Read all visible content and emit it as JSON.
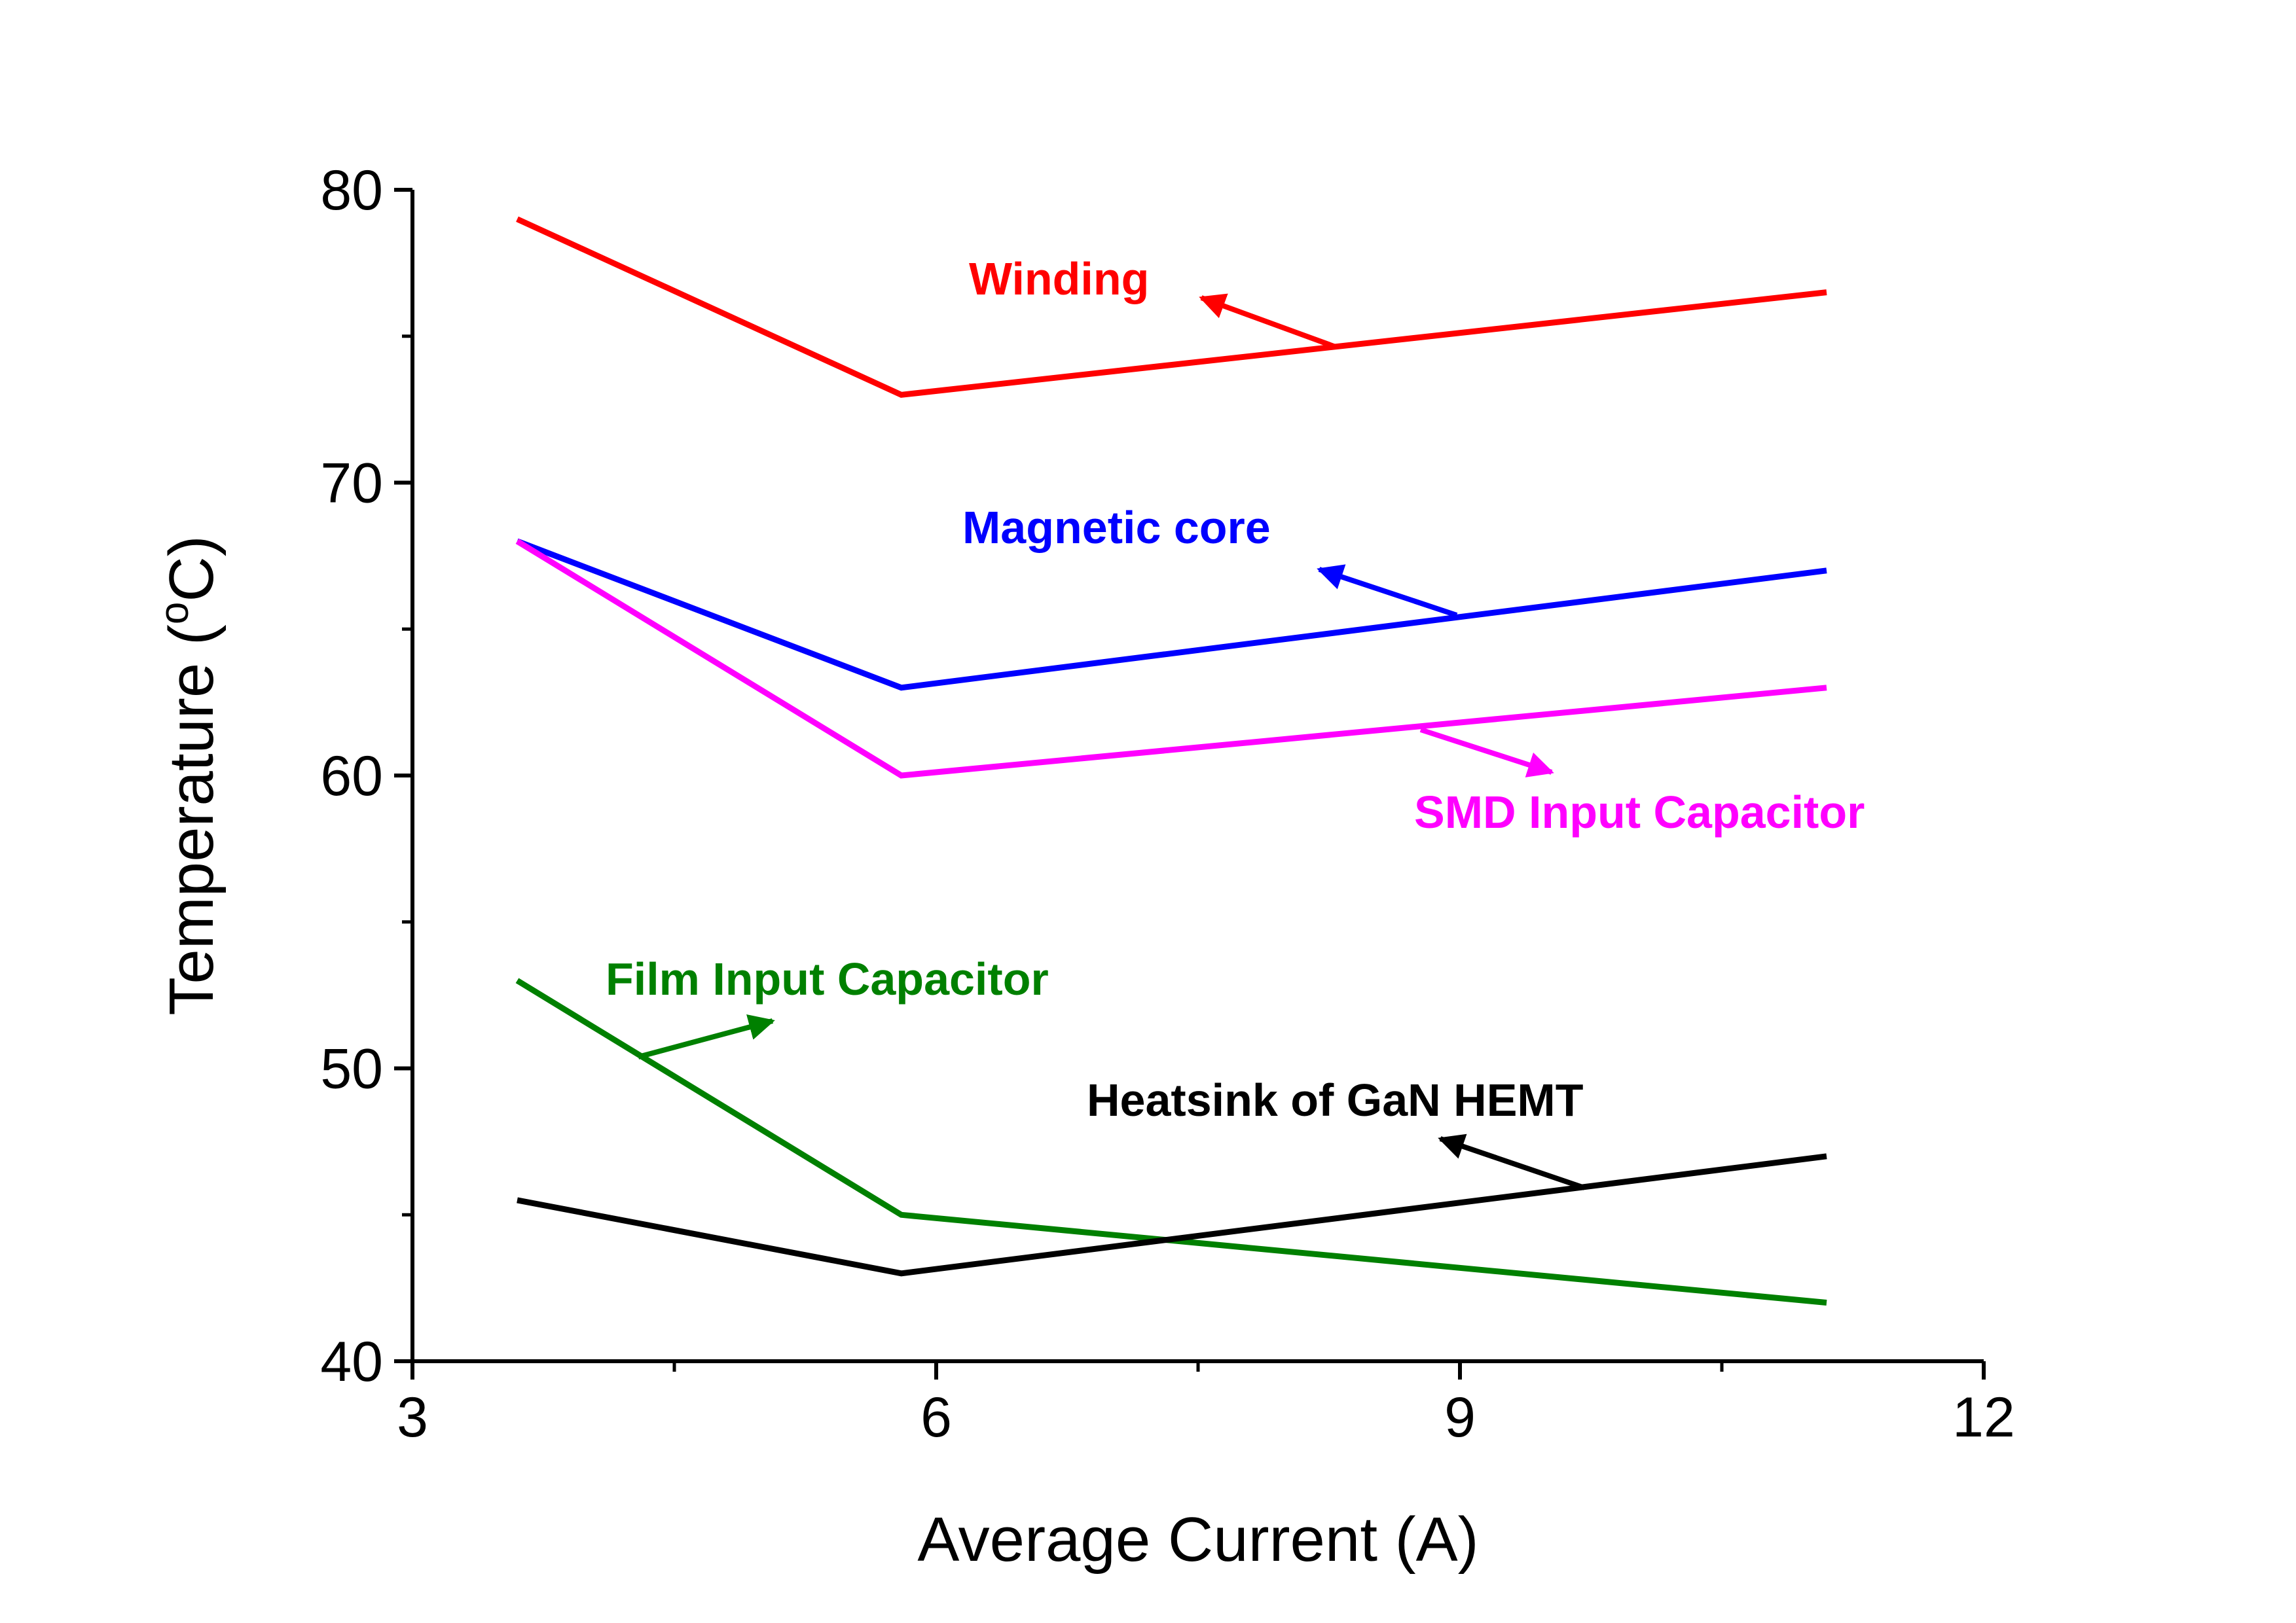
{
  "chart_data": {
    "type": "line",
    "title": "",
    "xlabel": "Average Current (A)",
    "ylabel_main": "Temperature (",
    "ylabel_sup": "o",
    "ylabel_end": "C)",
    "xlim": [
      3,
      12
    ],
    "ylim": [
      40,
      80
    ],
    "xticks": [
      3,
      6,
      9,
      12
    ],
    "xminor": [
      4.5,
      7.5,
      10.5
    ],
    "yticks": [
      40,
      50,
      60,
      70,
      80
    ],
    "yminor": [
      45,
      55,
      65,
      75
    ],
    "grid": false,
    "legend": "inline labels with arrows",
    "series": [
      {
        "name": "Winding",
        "color": "#ff0000",
        "x": [
          3.6,
          5.8,
          11.1
        ],
        "y": [
          79,
          73,
          76.5
        ]
      },
      {
        "name": "Magnetic core",
        "color": "#0000ff",
        "x": [
          3.6,
          5.8,
          11.1
        ],
        "y": [
          68,
          63,
          67
        ]
      },
      {
        "name": "SMD Input Capacitor",
        "color": "#ff00ff",
        "x": [
          3.6,
          5.8,
          11.1
        ],
        "y": [
          68,
          60,
          63
        ]
      },
      {
        "name": "Film Input Capacitor",
        "color": "#008000",
        "x": [
          3.6,
          5.8,
          11.1
        ],
        "y": [
          53,
          45,
          42
        ]
      },
      {
        "name": "Heatsink of GaN HEMT",
        "color": "#000000",
        "x": [
          3.6,
          5.8,
          11.1
        ],
        "y": [
          45.5,
          43,
          47
        ]
      }
    ]
  }
}
